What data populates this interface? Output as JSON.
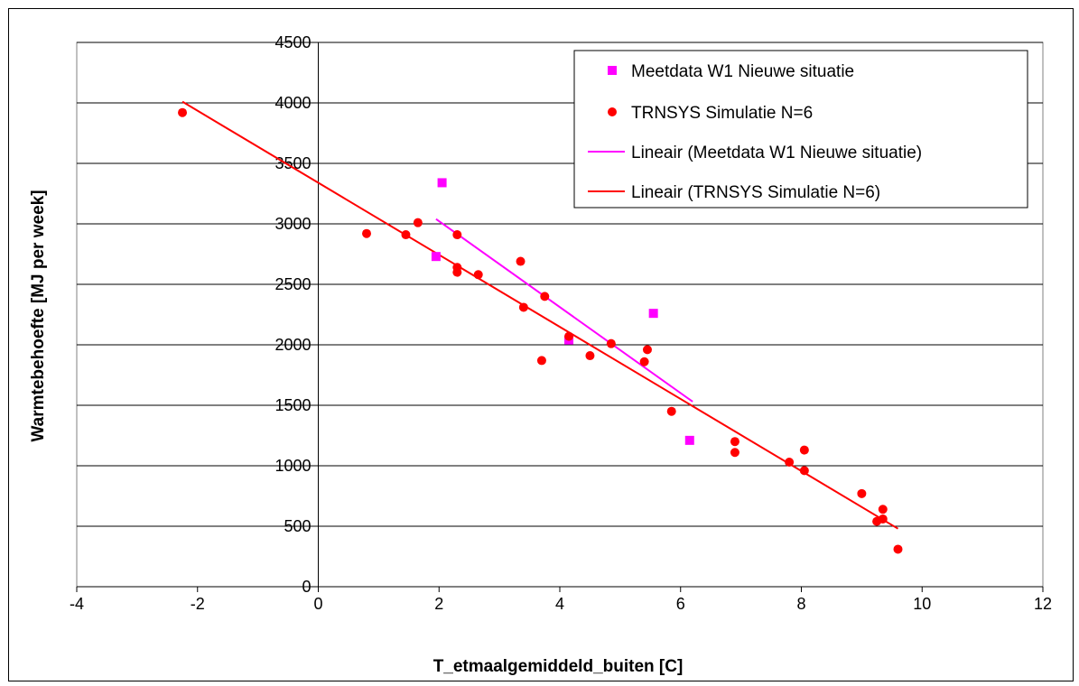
{
  "chart_data": {
    "type": "scatter",
    "xlabel": "T_etmaalgemiddeld_buiten [C]",
    "ylabel": "Warmtebehoefte [MJ per week]",
    "xlim": [
      -4,
      12
    ],
    "ylim": [
      0,
      4500
    ],
    "x_ticks": [
      -4,
      -2,
      0,
      2,
      4,
      6,
      8,
      10,
      12
    ],
    "y_ticks": [
      0,
      500,
      1000,
      1500,
      2000,
      2500,
      3000,
      3500,
      4000,
      4500
    ],
    "grid": "horizontal",
    "legend_position": "top-right",
    "series": [
      {
        "name": "Meetdata W1 Nieuwe situatie",
        "kind": "points",
        "marker": "square",
        "color": "#ff00ff",
        "points": [
          [
            2.05,
            3340
          ],
          [
            1.95,
            2730
          ],
          [
            4.15,
            2040
          ],
          [
            5.55,
            2260
          ],
          [
            6.15,
            1210
          ]
        ]
      },
      {
        "name": "TRNSYS Simulatie N=6",
        "kind": "points",
        "marker": "circle",
        "color": "#ff0000",
        "points": [
          [
            -2.25,
            3920
          ],
          [
            0.8,
            2920
          ],
          [
            1.45,
            2910
          ],
          [
            1.65,
            3010
          ],
          [
            2.3,
            2910
          ],
          [
            2.3,
            2640
          ],
          [
            2.3,
            2600
          ],
          [
            2.65,
            2580
          ],
          [
            3.35,
            2690
          ],
          [
            3.4,
            2310
          ],
          [
            3.7,
            1870
          ],
          [
            3.75,
            2400
          ],
          [
            4.15,
            2070
          ],
          [
            4.5,
            1910
          ],
          [
            4.85,
            2010
          ],
          [
            5.4,
            1860
          ],
          [
            5.45,
            1960
          ],
          [
            5.85,
            1450
          ],
          [
            6.9,
            1200
          ],
          [
            6.9,
            1110
          ],
          [
            7.8,
            1030
          ],
          [
            8.05,
            1130
          ],
          [
            8.05,
            960
          ],
          [
            9.0,
            770
          ],
          [
            9.25,
            540
          ],
          [
            9.35,
            560
          ],
          [
            9.35,
            640
          ],
          [
            9.6,
            310
          ]
        ]
      },
      {
        "name": "Lineair (Meetdata W1 Nieuwe situatie)",
        "kind": "line",
        "color": "#ff00ff",
        "points": [
          [
            1.95,
            3040
          ],
          [
            6.2,
            1530
          ]
        ]
      },
      {
        "name": "Lineair (TRNSYS Simulatie N=6)",
        "kind": "line",
        "color": "#ff0000",
        "points": [
          [
            -2.25,
            4010
          ],
          [
            9.6,
            480
          ]
        ]
      }
    ]
  }
}
